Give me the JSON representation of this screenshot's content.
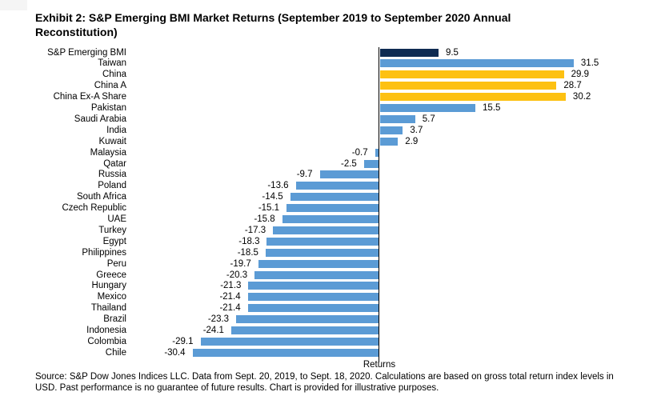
{
  "page": {
    "source_note": "Source: S&P Dow Jones Indices LLC. Data from Sept. 20, 2019, to Sept. 18, 2020. Calculations are based on gross total return index levels in USD. Past performance is no guarantee of future results. Chart is provided for illustrative purposes."
  },
  "chart_data": {
    "type": "bar",
    "orientation": "horizontal",
    "title": "Exhibit 2: S&P Emerging BMI Market Returns (September 2019 to September 2020 Annual Reconstitution)",
    "xlabel": "Returns",
    "xlim": [
      -40,
      40
    ],
    "grid": false,
    "legend_position": "none",
    "value_label_decimals": 1,
    "categories": [
      "S&P Emerging BMI",
      "Taiwan",
      "China",
      "China A",
      "China Ex-A Share",
      "Pakistan",
      "Saudi Arabia",
      "India",
      "Kuwait",
      "Malaysia",
      "Qatar",
      "Russia",
      "Poland",
      "South Africa",
      "Czech Republic",
      "UAE",
      "Turkey",
      "Egypt",
      "Philippines",
      "Peru",
      "Greece",
      "Hungary",
      "Mexico",
      "Thailand",
      "Brazil",
      "Indonesia",
      "Colombia",
      "Chile"
    ],
    "values": [
      9.5,
      31.5,
      29.9,
      28.7,
      30.2,
      15.5,
      5.7,
      3.7,
      2.9,
      -0.7,
      -2.5,
      -9.7,
      -13.6,
      -14.5,
      -15.1,
      -15.8,
      -17.3,
      -18.3,
      -18.5,
      -19.7,
      -20.3,
      -21.3,
      -21.4,
      -21.4,
      -23.3,
      -24.1,
      -29.1,
      -30.4
    ],
    "bar_color_keys": [
      "navy",
      "blue",
      "gold",
      "gold",
      "gold",
      "blue",
      "blue",
      "blue",
      "blue",
      "blue",
      "blue",
      "blue",
      "blue",
      "blue",
      "blue",
      "blue",
      "blue",
      "blue",
      "blue",
      "blue",
      "blue",
      "blue",
      "blue",
      "blue",
      "blue",
      "blue",
      "blue",
      "blue"
    ],
    "colors": {
      "navy": "#0E2B52",
      "blue": "#5B9BD5",
      "gold": "#FDC112",
      "axis": "#000000"
    }
  }
}
